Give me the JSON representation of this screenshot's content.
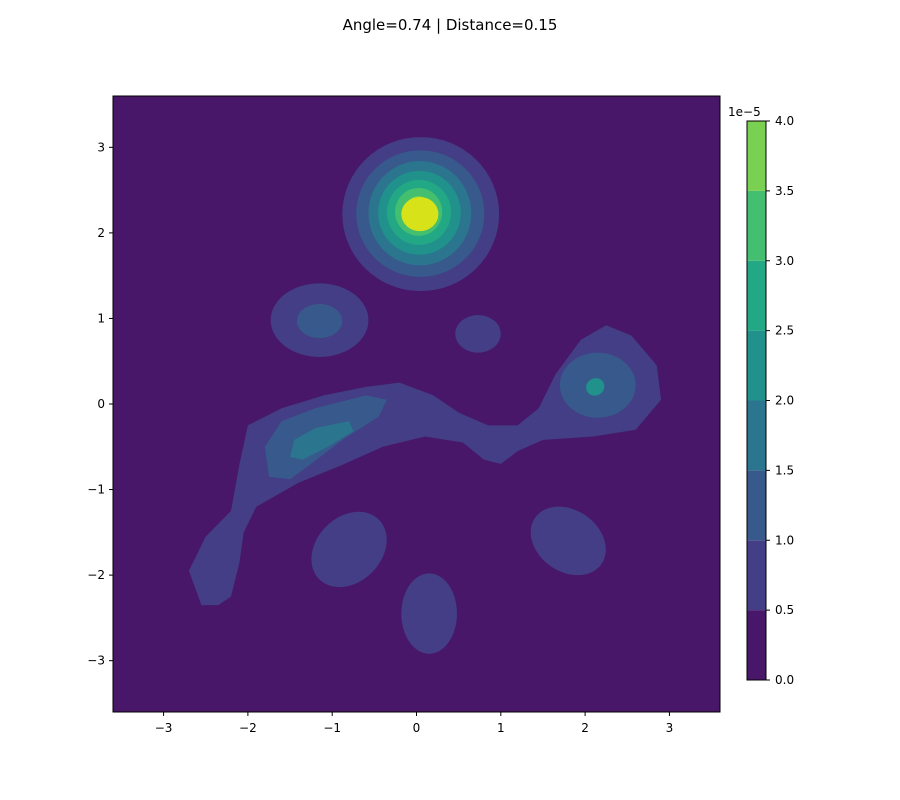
{
  "chart_data": {
    "type": "contour",
    "title": "Angle=0.74 | Distance=0.15",
    "xlabel": "",
    "ylabel": "",
    "xlim": [
      -3.6,
      3.6
    ],
    "ylim": [
      -3.6,
      3.6
    ],
    "x_ticks": [
      "−3",
      "−2",
      "−1",
      "0",
      "1",
      "2",
      "3"
    ],
    "y_ticks": [
      "−3",
      "−2",
      "−1",
      "0",
      "1",
      "2",
      "3"
    ],
    "grid": false,
    "colorbar": {
      "offset_label": "1e−5",
      "levels": [
        0.0,
        0.5,
        1.0,
        1.5,
        2.0,
        2.5,
        3.0,
        3.5,
        4.0
      ],
      "tick_labels": [
        "0.0",
        "0.5",
        "1.0",
        "1.5",
        "2.0",
        "2.5",
        "3.0",
        "3.5",
        "4.0"
      ],
      "colors": [
        "#481769",
        "#433e85",
        "#38598c",
        "#2b758e",
        "#21918c",
        "#22a884",
        "#44bf70",
        "#7ad151",
        "#d8e219"
      ]
    },
    "peaks": [
      {
        "x": 0.05,
        "y": 2.2,
        "peak_level": 4.0
      },
      {
        "x": -1.15,
        "y": 0.95,
        "peak_level": 1.0
      },
      {
        "x": 0.75,
        "y": 0.82,
        "peak_level": 0.5
      },
      {
        "x": -1.1,
        "y": -0.42,
        "peak_level": 2.0
      },
      {
        "x": 2.1,
        "y": 0.25,
        "peak_level": 2.0
      },
      {
        "x": -2.35,
        "y": -1.95,
        "peak_level": 0.5
      },
      {
        "x": -0.8,
        "y": -1.7,
        "peak_level": 0.5
      },
      {
        "x": 1.8,
        "y": -1.6,
        "peak_level": 0.5
      },
      {
        "x": 0.15,
        "y": -2.45,
        "peak_level": 0.5
      }
    ]
  }
}
